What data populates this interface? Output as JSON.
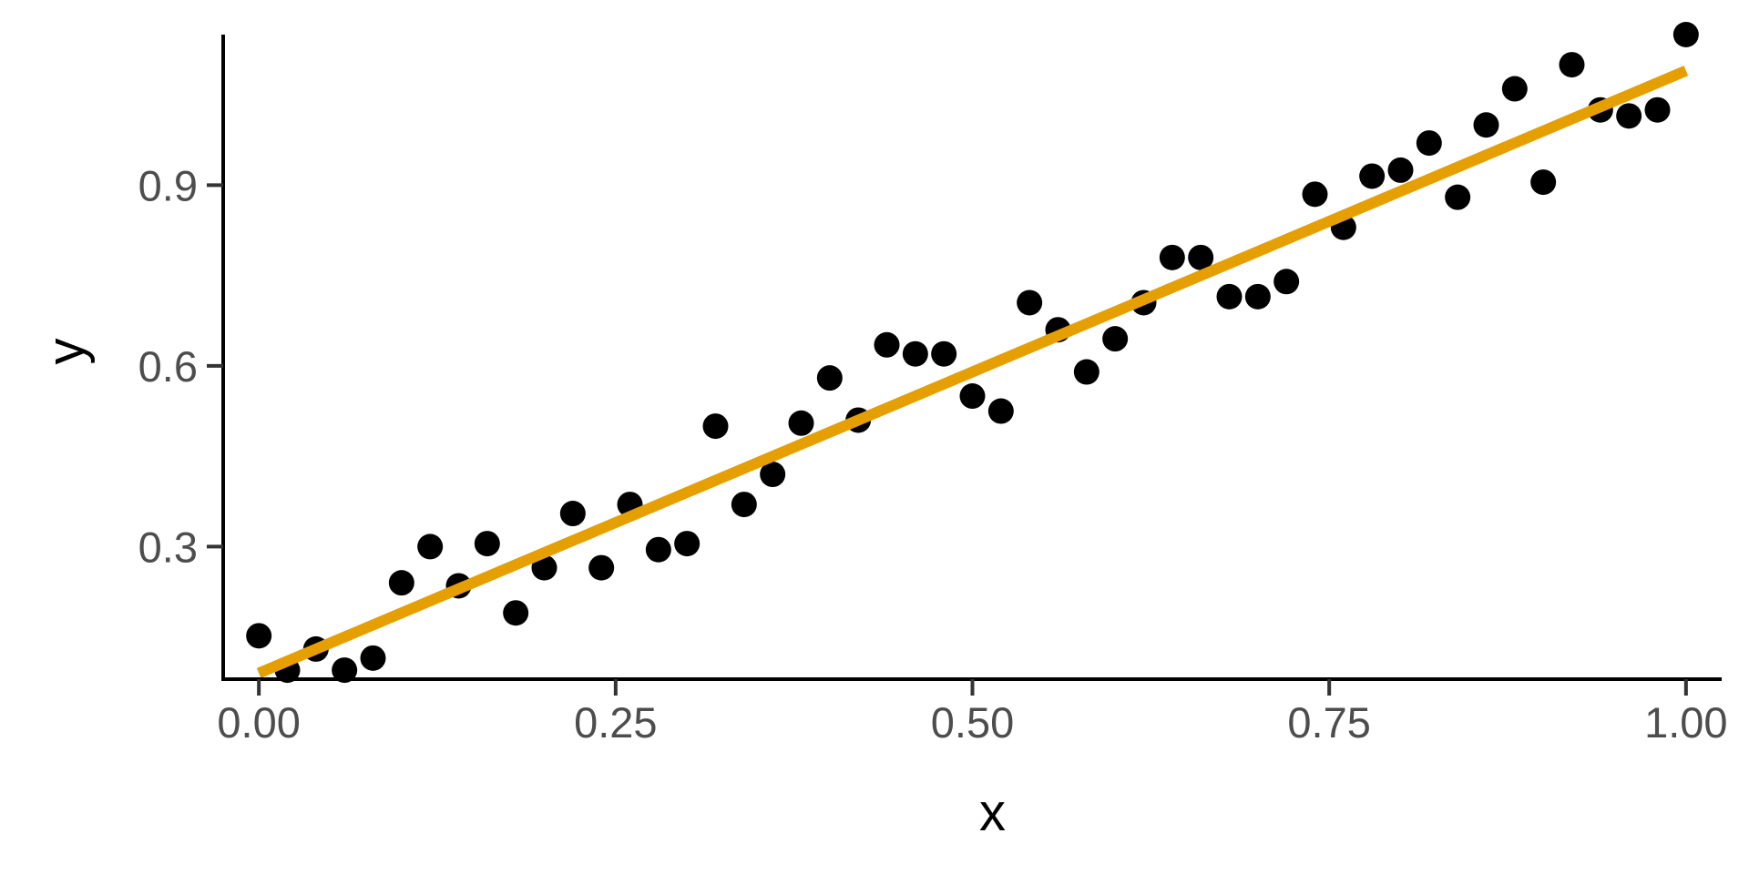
{
  "chart_data": {
    "type": "scatter",
    "title": "",
    "xlabel": "x",
    "ylabel": "y",
    "xlim": [
      -0.025,
      1.025
    ],
    "ylim": [
      0.08,
      1.15
    ],
    "x_ticks": [
      0,
      0.25,
      0.5,
      0.75,
      1
    ],
    "x_tick_labels": [
      "0.00",
      "0.25",
      "0.50",
      "0.75",
      "1.00"
    ],
    "y_ticks": [
      0.3,
      0.6,
      0.9
    ],
    "y_tick_labels": [
      "0.3",
      "0.6",
      "0.9"
    ],
    "grid": false,
    "legend": "none",
    "series": [
      {
        "type": "scatter",
        "color": "#000000",
        "x": [
          0,
          0.02,
          0.04,
          0.06,
          0.08,
          0.1,
          0.12,
          0.14,
          0.16,
          0.18,
          0.2,
          0.22,
          0.24,
          0.26,
          0.28,
          0.3,
          0.32,
          0.34,
          0.36,
          0.38,
          0.4,
          0.42,
          0.44,
          0.46,
          0.48,
          0.5,
          0.52,
          0.54,
          0.56,
          0.58,
          0.6,
          0.62,
          0.64,
          0.66,
          0.68,
          0.7,
          0.72,
          0.74,
          0.76,
          0.78,
          0.8,
          0.82,
          0.84,
          0.86,
          0.88,
          0.9,
          0.92,
          0.94,
          0.96,
          0.98,
          1
        ],
        "y": [
          0.152,
          0.095,
          0.13,
          0.095,
          0.115,
          0.24,
          0.3,
          0.235,
          0.305,
          0.19,
          0.265,
          0.355,
          0.265,
          0.37,
          0.295,
          0.305,
          0.5,
          0.37,
          0.42,
          0.505,
          0.58,
          0.51,
          0.635,
          0.62,
          0.62,
          0.55,
          0.525,
          0.705,
          0.66,
          0.59,
          0.645,
          0.705,
          0.78,
          0.78,
          0.715,
          0.715,
          0.74,
          0.885,
          0.83,
          0.915,
          0.925,
          0.97,
          0.88,
          1,
          1.06,
          0.905,
          1.1,
          1.025,
          1.015,
          1.025,
          1.15
        ]
      },
      {
        "type": "line",
        "color": "#e69f00",
        "x": [
          0,
          1
        ],
        "y": [
          0.09,
          1.09
        ]
      }
    ]
  }
}
